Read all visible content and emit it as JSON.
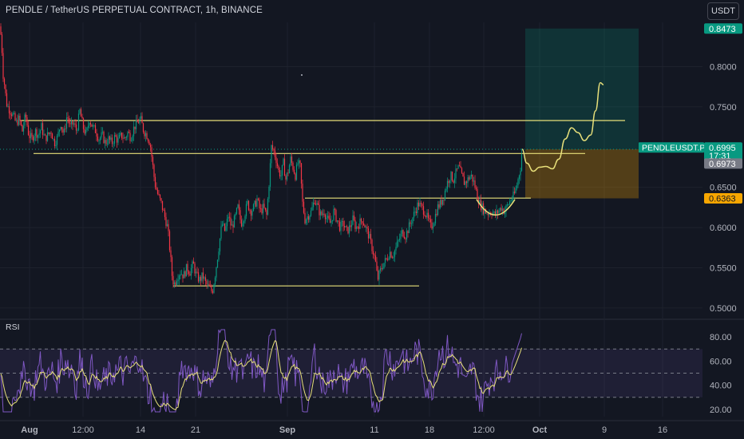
{
  "header": {
    "title": "PENDLE / TetherUS PERPETUAL CONTRACT, 1h, BINANCE",
    "currency_button": "USDT"
  },
  "chart_data": [
    {
      "type": "candlestick",
      "symbol": "PENDLEUSDT.P",
      "price_axis_ticks": [
        0.8,
        0.75,
        0.65,
        0.6,
        0.55,
        0.5
      ],
      "y_range": [
        0.488,
        0.855
      ],
      "time_axis_labels": [
        "Aug",
        "12:00",
        "14",
        "21",
        "Sep",
        "11",
        "18",
        "12:00",
        "Oct",
        "9",
        "16"
      ],
      "price_path": [
        [
          0,
          0.85
        ],
        [
          2,
          0.83
        ],
        [
          4,
          0.79
        ],
        [
          6,
          0.775
        ],
        [
          8,
          0.755
        ],
        [
          10,
          0.75
        ],
        [
          13,
          0.745
        ],
        [
          16,
          0.74
        ],
        [
          20,
          0.73
        ],
        [
          24,
          0.735
        ],
        [
          28,
          0.72
        ],
        [
          32,
          0.74
        ],
        [
          36,
          0.715
        ],
        [
          40,
          0.71
        ],
        [
          44,
          0.72
        ],
        [
          48,
          0.715
        ],
        [
          52,
          0.725
        ],
        [
          56,
          0.71
        ],
        [
          60,
          0.715
        ],
        [
          64,
          0.72
        ],
        [
          68,
          0.705
        ],
        [
          72,
          0.712
        ],
        [
          76,
          0.73
        ],
        [
          80,
          0.715
        ],
        [
          84,
          0.74
        ],
        [
          88,
          0.725
        ],
        [
          92,
          0.73
        ],
        [
          96,
          0.72
        ],
        [
          100,
          0.745
        ],
        [
          104,
          0.725
        ],
        [
          108,
          0.715
        ],
        [
          112,
          0.735
        ],
        [
          116,
          0.725
        ],
        [
          120,
          0.72
        ],
        [
          124,
          0.71
        ],
        [
          128,
          0.715
        ],
        [
          132,
          0.705
        ],
        [
          136,
          0.71
        ],
        [
          140,
          0.705
        ],
        [
          144,
          0.713
        ],
        [
          148,
          0.708
        ],
        [
          152,
          0.715
        ],
        [
          156,
          0.71
        ],
        [
          160,
          0.718
        ],
        [
          164,
          0.712
        ],
        [
          168,
          0.725
        ],
        [
          172,
          0.73
        ],
        [
          176,
          0.735
        ],
        [
          180,
          0.72
        ],
        [
          184,
          0.715
        ],
        [
          188,
          0.705
        ],
        [
          191,
          0.68
        ],
        [
          194,
          0.655
        ],
        [
          198,
          0.64
        ],
        [
          202,
          0.63
        ],
        [
          206,
          0.615
        ],
        [
          210,
          0.6
        ],
        [
          213,
          0.57
        ],
        [
          216,
          0.535
        ],
        [
          219,
          0.53
        ],
        [
          222,
          0.54
        ],
        [
          226,
          0.545
        ],
        [
          230,
          0.54
        ],
        [
          234,
          0.55
        ],
        [
          238,
          0.545
        ],
        [
          242,
          0.555
        ],
        [
          246,
          0.54
        ],
        [
          250,
          0.535
        ],
        [
          254,
          0.54
        ],
        [
          258,
          0.53
        ],
        [
          262,
          0.525
        ],
        [
          266,
          0.52
        ],
        [
          270,
          0.545
        ],
        [
          274,
          0.575
        ],
        [
          278,
          0.605
        ],
        [
          282,
          0.595
        ],
        [
          286,
          0.615
        ],
        [
          290,
          0.6
        ],
        [
          294,
          0.61
        ],
        [
          298,
          0.625
        ],
        [
          302,
          0.605
        ],
        [
          306,
          0.615
        ],
        [
          310,
          0.63
        ],
        [
          314,
          0.62
        ],
        [
          318,
          0.625
        ],
        [
          322,
          0.635
        ],
        [
          326,
          0.62
        ],
        [
          330,
          0.625
        ],
        [
          334,
          0.615
        ],
        [
          337,
          0.655
        ],
        [
          340,
          0.7
        ],
        [
          343,
          0.695
        ],
        [
          346,
          0.685
        ],
        [
          349,
          0.67
        ],
        [
          352,
          0.665
        ],
        [
          355,
          0.68
        ],
        [
          358,
          0.66
        ],
        [
          361,
          0.67
        ],
        [
          364,
          0.685
        ],
        [
          367,
          0.675
        ],
        [
          370,
          0.665
        ],
        [
          373,
          0.68
        ],
        [
          376,
          0.675
        ],
        [
          379,
          0.63
        ],
        [
          382,
          0.61
        ],
        [
          386,
          0.615
        ],
        [
          390,
          0.62
        ],
        [
          394,
          0.635
        ],
        [
          398,
          0.625
        ],
        [
          402,
          0.615
        ],
        [
          406,
          0.62
        ],
        [
          410,
          0.61
        ],
        [
          414,
          0.605
        ],
        [
          418,
          0.62
        ],
        [
          422,
          0.61
        ],
        [
          426,
          0.6
        ],
        [
          430,
          0.605
        ],
        [
          434,
          0.595
        ],
        [
          438,
          0.6
        ],
        [
          442,
          0.61
        ],
        [
          446,
          0.6
        ],
        [
          450,
          0.605
        ],
        [
          454,
          0.61
        ],
        [
          458,
          0.6
        ],
        [
          462,
          0.59
        ],
        [
          466,
          0.575
        ],
        [
          470,
          0.56
        ],
        [
          473,
          0.535
        ],
        [
          476,
          0.545
        ],
        [
          480,
          0.555
        ],
        [
          484,
          0.56
        ],
        [
          488,
          0.57
        ],
        [
          492,
          0.565
        ],
        [
          496,
          0.575
        ],
        [
          500,
          0.585
        ],
        [
          504,
          0.595
        ],
        [
          508,
          0.59
        ],
        [
          512,
          0.6
        ],
        [
          516,
          0.61
        ],
        [
          520,
          0.62
        ],
        [
          524,
          0.63
        ],
        [
          528,
          0.625
        ],
        [
          532,
          0.62
        ],
        [
          536,
          0.61
        ],
        [
          540,
          0.6
        ],
        [
          544,
          0.61
        ],
        [
          548,
          0.625
        ],
        [
          552,
          0.63
        ],
        [
          556,
          0.64
        ],
        [
          560,
          0.655
        ],
        [
          564,
          0.665
        ],
        [
          568,
          0.66
        ],
        [
          572,
          0.67
        ],
        [
          575,
          0.675
        ],
        [
          578,
          0.665
        ],
        [
          582,
          0.655
        ],
        [
          586,
          0.66
        ],
        [
          590,
          0.665
        ],
        [
          594,
          0.655
        ],
        [
          598,
          0.64
        ],
        [
          601,
          0.63
        ],
        [
          604,
          0.625
        ],
        [
          608,
          0.62
        ],
        [
          612,
          0.618
        ],
        [
          616,
          0.62
        ],
        [
          620,
          0.615
        ],
        [
          624,
          0.62
        ],
        [
          628,
          0.625
        ],
        [
          632,
          0.62
        ],
        [
          636,
          0.628
        ],
        [
          640,
          0.635
        ],
        [
          644,
          0.64
        ],
        [
          648,
          0.655
        ],
        [
          652,
          0.675
        ],
        [
          654,
          0.6973
        ]
      ],
      "horizontal_lines": [
        {
          "price": 0.733,
          "from_x": 25,
          "to_x": 783
        },
        {
          "price": 0.692,
          "from_x": 42,
          "to_x": 733
        },
        {
          "price": 0.6366,
          "from_x": 382,
          "to_x": 665
        },
        {
          "price": 0.5275,
          "from_x": 217,
          "to_x": 525
        }
      ],
      "long_position": {
        "entry": 0.6973,
        "target": 0.8473,
        "stop": 0.6363,
        "from_x": 658,
        "to_x": 800
      },
      "projection_path": [
        [
          654,
          0.6973
        ],
        [
          660,
          0.68
        ],
        [
          668,
          0.67
        ],
        [
          676,
          0.675
        ],
        [
          684,
          0.676
        ],
        [
          692,
          0.673
        ],
        [
          700,
          0.685
        ],
        [
          708,
          0.71
        ],
        [
          716,
          0.724
        ],
        [
          724,
          0.718
        ],
        [
          732,
          0.708
        ],
        [
          740,
          0.715
        ],
        [
          746,
          0.745
        ],
        [
          752,
          0.78
        ],
        [
          756,
          0.7775
        ]
      ],
      "cup_arc": {
        "price_top": 0.635,
        "price_bottom": 0.614
      },
      "price_labels": [
        {
          "text": "0.8473",
          "price": 0.8473,
          "color": "#089981"
        },
        {
          "text": "PENDLEUSDT.P",
          "price": 0.6995,
          "color": "#089981"
        },
        {
          "text": "0.6995",
          "price": 0.6995,
          "color": "#089981"
        },
        {
          "text": "17:31",
          "price": 0.6895,
          "color": "#089981"
        },
        {
          "text": "0.6973",
          "price": 0.6795,
          "color": "#787b86"
        },
        {
          "text": "0.6363",
          "price": 0.6363,
          "color": "#f7a600"
        }
      ]
    },
    {
      "type": "line",
      "title": "RSI",
      "ticks": [
        80,
        60,
        40,
        20
      ],
      "y_range": [
        14,
        88
      ],
      "band": [
        30,
        70
      ],
      "mid": 50,
      "rsi_end_value": 83
    }
  ]
}
